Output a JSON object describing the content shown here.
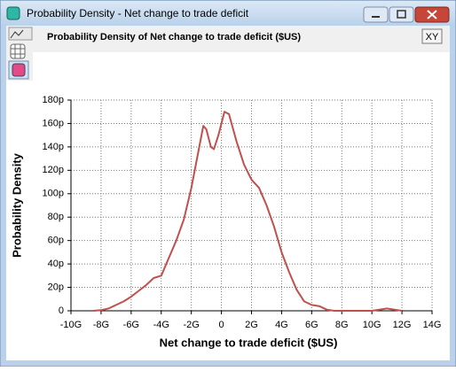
{
  "window": {
    "title": "Probability Density - Net change to trade deficit",
    "button": "XY"
  },
  "chart_data": {
    "type": "line",
    "title": "Probability Density of Net change to trade deficit ($US)",
    "x_label": "Net change to trade deficit ($US)",
    "y_label": "Probability Density",
    "color": "#c0504d",
    "grid": true,
    "x": [
      -8.5,
      -8,
      -7.5,
      -7,
      -6.5,
      -6,
      -5.5,
      -5,
      -4.5,
      -4,
      -3.5,
      -3,
      -2.5,
      -2,
      -1.5,
      -1.2,
      -1,
      -0.7,
      -0.5,
      -0.2,
      0.2,
      0.5,
      1,
      1.5,
      2,
      2.5,
      3,
      3.5,
      4,
      4.5,
      5,
      5.5,
      6,
      6.5,
      7,
      7.5,
      10,
      10.5,
      11,
      11.5,
      12
    ],
    "values": [
      0,
      0.5,
      2,
      5,
      8,
      12,
      17,
      22,
      28,
      30,
      45,
      60,
      78,
      105,
      138,
      158,
      155,
      140,
      138,
      150,
      170,
      168,
      145,
      125,
      112,
      105,
      90,
      72,
      50,
      33,
      18,
      8,
      5,
      4,
      1,
      0,
      0,
      1,
      2,
      1,
      0
    ],
    "xlim": [
      -10,
      14
    ],
    "xticks": [
      {
        "value": -10,
        "label": "-10G"
      },
      {
        "value": -8,
        "label": "-8G"
      },
      {
        "value": -6,
        "label": "-6G"
      },
      {
        "value": -4,
        "label": "-4G"
      },
      {
        "value": -2,
        "label": "-2G"
      },
      0,
      {
        "value": 2,
        "label": "2G"
      },
      {
        "value": 4,
        "label": "4G"
      },
      {
        "value": 6,
        "label": "6G"
      },
      {
        "value": 8,
        "label": "8G"
      },
      {
        "value": 10,
        "label": "10G"
      },
      {
        "value": 12,
        "label": "12G"
      },
      {
        "value": 14,
        "label": "14G"
      }
    ],
    "ylim": [
      0,
      180
    ],
    "yticks": [
      0,
      {
        "value": 20,
        "label": "20p"
      },
      {
        "value": 40,
        "label": "40p"
      },
      {
        "value": 60,
        "label": "60p"
      },
      {
        "value": 80,
        "label": "80p"
      },
      {
        "value": 100,
        "label": "100p"
      },
      {
        "value": 120,
        "label": "120p"
      },
      {
        "value": 140,
        "label": "140p"
      },
      {
        "value": 160,
        "label": "160p"
      },
      {
        "value": 180,
        "label": "180p"
      }
    ]
  }
}
